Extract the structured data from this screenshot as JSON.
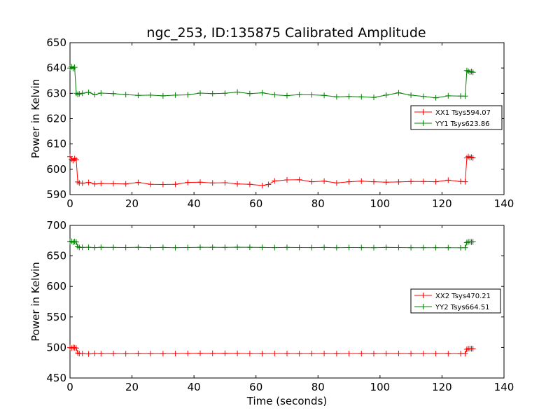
{
  "figure": {
    "title": "ngc_253, ID:135875 Calibrated Amplitude",
    "xlabel": "Time (seconds)"
  },
  "chart_data": [
    {
      "type": "line",
      "title": "ngc_253, ID:135875 Calibrated Amplitude",
      "xlabel": "",
      "ylabel": "Power in Kelvin",
      "xlim": [
        0,
        140
      ],
      "ylim": [
        590,
        650
      ],
      "xticks": [
        0,
        20,
        40,
        60,
        80,
        100,
        120,
        140
      ],
      "yticks": [
        590,
        600,
        610,
        620,
        630,
        640,
        650
      ],
      "marker": "+",
      "legend_position": "right",
      "series": [
        {
          "name": "XX1 Tsys594.07",
          "color": "#ff0000",
          "x": [
            0,
            0.5,
            1,
            1.5,
            2,
            2.5,
            3,
            4,
            6,
            8,
            10,
            14,
            18,
            22,
            26,
            30,
            34,
            38,
            42,
            46,
            50,
            54,
            58,
            62,
            64,
            66,
            70,
            74,
            78,
            82,
            86,
            90,
            94,
            98,
            102,
            106,
            110,
            114,
            118,
            122,
            126,
            127.5,
            128,
            128.5,
            129,
            129.5,
            130
          ],
          "y": [
            605,
            604,
            603.5,
            604.2,
            603.8,
            595,
            594.6,
            594.5,
            594.8,
            594.2,
            594.4,
            594.3,
            594.2,
            594.8,
            594.1,
            594,
            594.1,
            594.8,
            594.9,
            594.6,
            594.7,
            594.2,
            594.1,
            593.6,
            594,
            595.4,
            595.8,
            595.9,
            595.1,
            595.3,
            594.6,
            595.1,
            595.3,
            595.1,
            594.9,
            595,
            595.2,
            595.2,
            595.1,
            595.7,
            595.2,
            595.1,
            604.5,
            605,
            604.6,
            604.8,
            604.5
          ]
        },
        {
          "name": "YY1 Tsys623.86",
          "color": "#008000",
          "x": [
            0,
            0.5,
            1,
            1.5,
            2,
            2.5,
            3,
            4,
            6,
            8,
            10,
            14,
            18,
            22,
            26,
            30,
            34,
            38,
            42,
            46,
            50,
            54,
            58,
            62,
            66,
            70,
            74,
            78,
            82,
            86,
            90,
            94,
            98,
            102,
            106,
            110,
            114,
            118,
            122,
            126,
            127.5,
            128,
            128.5,
            129,
            129.5,
            130
          ],
          "y": [
            640,
            640.5,
            639.8,
            640.3,
            630,
            629.6,
            629.8,
            630,
            630.4,
            629.5,
            630.1,
            629.9,
            629.5,
            629.2,
            629.3,
            629,
            629.3,
            629.4,
            630.1,
            629.9,
            630,
            630.5,
            629.9,
            630.2,
            629.4,
            629.1,
            629.5,
            629.4,
            629.2,
            628.6,
            628.8,
            628.6,
            628.4,
            629.3,
            630.2,
            629.3,
            628.8,
            628.2,
            629,
            628.9,
            628.9,
            639,
            638.7,
            638.4,
            638.6,
            638.3
          ]
        }
      ]
    },
    {
      "type": "line",
      "title": "",
      "xlabel": "Time (seconds)",
      "ylabel": "Power in Kelvin",
      "xlim": [
        0,
        140
      ],
      "ylim": [
        450,
        700
      ],
      "xticks": [
        0,
        20,
        40,
        60,
        80,
        100,
        120,
        140
      ],
      "yticks": [
        450,
        500,
        550,
        600,
        650,
        700
      ],
      "marker": "+",
      "legend_position": "right",
      "series": [
        {
          "name": "XX2 Tsys470.21",
          "color": "#ff0000",
          "x": [
            0,
            0.5,
            1,
            1.5,
            2,
            2.5,
            3,
            4,
            6,
            8,
            10,
            14,
            18,
            22,
            26,
            30,
            34,
            38,
            42,
            46,
            50,
            54,
            58,
            62,
            66,
            70,
            74,
            78,
            82,
            86,
            90,
            94,
            98,
            102,
            106,
            110,
            114,
            118,
            122,
            126,
            127.5,
            128,
            128.5,
            129,
            129.5,
            130
          ],
          "y": [
            500,
            499,
            500,
            499.5,
            499,
            491,
            490,
            490,
            489.5,
            490.2,
            489.8,
            490,
            489.7,
            490,
            489.8,
            489.9,
            490,
            490.2,
            490.4,
            490.3,
            490.5,
            490.2,
            490,
            489.9,
            490.1,
            490,
            489.8,
            490,
            490,
            489.9,
            490.1,
            490,
            489.9,
            490,
            490.1,
            489.8,
            490,
            490,
            489.9,
            489.8,
            489.8,
            497,
            498,
            498.2,
            497.8,
            498
          ]
        },
        {
          "name": "YY2 Tsys664.51",
          "color": "#008000",
          "x": [
            0,
            0.5,
            1,
            1.5,
            2,
            2.5,
            3,
            4,
            6,
            8,
            10,
            14,
            18,
            22,
            26,
            30,
            34,
            38,
            42,
            46,
            50,
            54,
            58,
            62,
            66,
            70,
            74,
            78,
            82,
            86,
            90,
            94,
            98,
            102,
            106,
            110,
            114,
            118,
            122,
            126,
            127.5,
            128,
            128.5,
            129,
            129.5,
            130
          ],
          "y": [
            673,
            674,
            672.5,
            673.5,
            672.8,
            665,
            664,
            664,
            664.2,
            663.8,
            664.1,
            664,
            663.9,
            664.1,
            663.8,
            664,
            663.7,
            663.9,
            664.1,
            664.2,
            664,
            664.3,
            664.1,
            664,
            663.8,
            664,
            663.9,
            663.8,
            664,
            663.7,
            663.9,
            663.8,
            663.7,
            664,
            663.9,
            663.7,
            663.5,
            663.6,
            663.5,
            663.4,
            663.5,
            672,
            673,
            673.2,
            672.8,
            673
          ]
        }
      ]
    }
  ]
}
